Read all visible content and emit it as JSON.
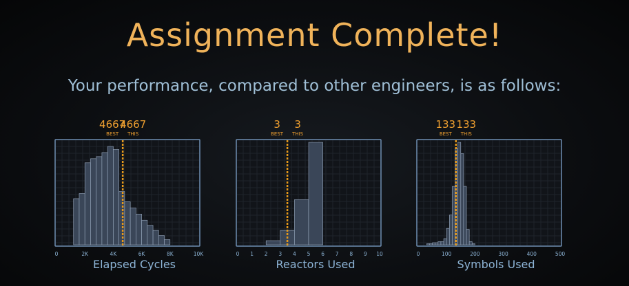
{
  "header": {
    "title": "Assignment Complete!",
    "subtitle": "Your performance, compared to other engineers, is as follows:"
  },
  "colors": {
    "title": "#f0b35a",
    "subtitle": "#9fbfd6",
    "frame": "#6f8fb3",
    "bars": "#3a4658",
    "bar_stroke": "#9aaac0",
    "marker": "#e89a1a",
    "value": "#f0a030",
    "axis_label": "#8db4d6"
  },
  "chart_data": [
    {
      "type": "bar",
      "xlabel": "Elapsed Cycles",
      "xlim": [
        0,
        10000
      ],
      "tick_values": [
        0,
        2000,
        4000,
        6000,
        8000,
        10000
      ],
      "tick_labels": [
        "0",
        "2K",
        "4K",
        "6K",
        "8K",
        "10K"
      ],
      "bin_width": 400,
      "bins_start": [
        1200,
        1600,
        2000,
        2400,
        2800,
        3200,
        3600,
        4000,
        4400,
        4800,
        5200,
        5600,
        6000,
        6400,
        6800,
        7200,
        7600
      ],
      "values": [
        0.45,
        0.5,
        0.8,
        0.84,
        0.86,
        0.9,
        0.96,
        0.93,
        0.52,
        0.42,
        0.36,
        0.3,
        0.24,
        0.19,
        0.14,
        0.09,
        0.05
      ],
      "best": {
        "value": "4667",
        "label": "BEST",
        "x": 4667
      },
      "this": {
        "value": "4667",
        "label": "THIS",
        "x": 4667
      }
    },
    {
      "type": "bar",
      "xlabel": "Reactors Used",
      "xlim": [
        0,
        10
      ],
      "tick_values": [
        0,
        1,
        2,
        3,
        4,
        5,
        6,
        7,
        8,
        9,
        10
      ],
      "tick_labels": [
        "0",
        "1",
        "2",
        "3",
        "4",
        "5",
        "6",
        "7",
        "8",
        "9",
        "10"
      ],
      "bin_width": 1,
      "bins_start": [
        2,
        3,
        4,
        5
      ],
      "values": [
        0.04,
        0.14,
        0.44,
        1.0
      ],
      "best": {
        "value": "3",
        "label": "BEST",
        "x": 3.5
      },
      "this": {
        "value": "3",
        "label": "THIS",
        "x": 3.5
      }
    },
    {
      "type": "bar",
      "xlabel": "Symbols Used",
      "xlim": [
        0,
        500
      ],
      "tick_values": [
        0,
        100,
        200,
        300,
        400,
        500
      ],
      "tick_labels": [
        "0",
        "100",
        "200",
        "300",
        "400",
        "500"
      ],
      "bin_width": 10,
      "bins_start": [
        30,
        40,
        50,
        60,
        70,
        80,
        90,
        100,
        110,
        120,
        130,
        140,
        150,
        160,
        170,
        180,
        190
      ],
      "values": [
        0.01,
        0.01,
        0.02,
        0.02,
        0.03,
        0.03,
        0.06,
        0.16,
        0.29,
        0.57,
        0.94,
        1.0,
        0.89,
        0.57,
        0.15,
        0.03,
        0.01
      ],
      "best": {
        "value": "133",
        "label": "BEST",
        "x": 133
      },
      "this": {
        "value": "133",
        "label": "THIS",
        "x": 133
      }
    }
  ]
}
